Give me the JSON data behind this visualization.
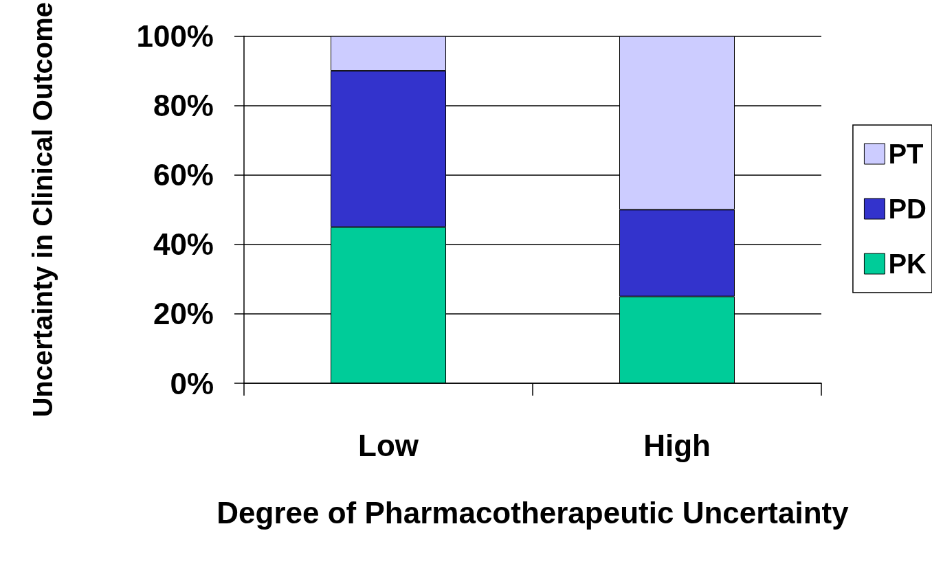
{
  "chart_data": {
    "type": "bar",
    "stacked": true,
    "xlabel": "Degree of Pharmacotherapeutic Uncertainty",
    "ylabel": "Uncertainty in Clinical Outcome",
    "categories": [
      "Low",
      "High"
    ],
    "series": [
      {
        "name": "PK",
        "color": "#00cc99",
        "values": [
          45,
          25
        ]
      },
      {
        "name": "PD",
        "color": "#3333cc",
        "values": [
          45,
          25
        ]
      },
      {
        "name": "PT",
        "color": "#ccccff",
        "values": [
          10,
          50
        ]
      }
    ],
    "ylim": [
      0,
      100
    ],
    "yticks": [
      {
        "value": 0,
        "label": "0%"
      },
      {
        "value": 20,
        "label": "20%"
      },
      {
        "value": 40,
        "label": "40%"
      },
      {
        "value": 60,
        "label": "60%"
      },
      {
        "value": 80,
        "label": "80%"
      },
      {
        "value": 100,
        "label": "100%"
      }
    ],
    "grid": "y",
    "legend": "right"
  }
}
